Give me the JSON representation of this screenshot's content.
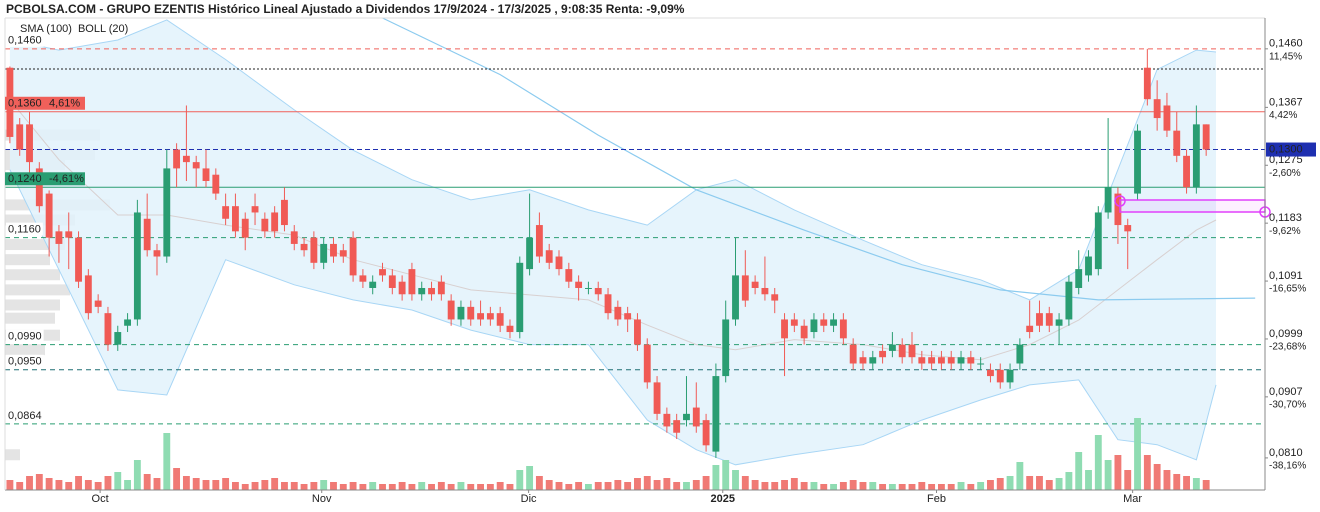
{
  "chart_data": {
    "type": "candlestick",
    "title": "PCBOLSA.COM - GRUPO EZENTIS Histórico Lineal Ajustado a Dividendos 17/9/2024 - 17/3/2025 , 9:08:35 Renta: -9,09%",
    "up_color": "#2a9d72",
    "down_color": "#f05a55",
    "up_volume_color": "#8fdcb2",
    "down_volume_color": "#f07a75",
    "xlim": [
      -0.5,
      128
    ],
    "ylim": [
      0.0759,
      0.1509
    ],
    "vlim": [
      0,
      100
    ],
    "xticks": [
      {
        "value": 9.2,
        "label": "Oct"
      },
      {
        "value": 31.8,
        "label": "Nov"
      },
      {
        "value": 52.9,
        "label": "Dic"
      },
      {
        "value": 72.7,
        "label": "2025"
      },
      {
        "value": 94.5,
        "label": "Feb"
      },
      {
        "value": 114.5,
        "label": "Mar"
      }
    ],
    "yticks": [
      {
        "value": 0.146,
        "label": "0,1460"
      },
      {
        "value": 0.1367,
        "label": "0,1367"
      },
      {
        "value": 0.1275,
        "label": "0,1275"
      },
      {
        "value": 0.1183,
        "label": "0,1183"
      },
      {
        "value": 0.1091,
        "label": "0,1091"
      },
      {
        "value": 0.0999,
        "label": "0,0999"
      },
      {
        "value": 0.0907,
        "label": "0,0907"
      },
      {
        "value": 0.081,
        "label": "0,0810"
      }
    ],
    "ytick_changes": [
      "11,45%",
      "4,42%",
      "-2,60%",
      "-9,62%",
      "-16,65%",
      "-23,68%",
      "-30,70%",
      "-38,16%"
    ],
    "last_price": {
      "value": 0.13,
      "label": "0,1300",
      "color": "#1e2fb0"
    },
    "levels": [
      {
        "value": 0.146,
        "label": "0,1460",
        "color": "#f0605a",
        "style": "dashed"
      },
      {
        "value": 0.1428,
        "color": "#222222",
        "style": "dotted"
      },
      {
        "value": 0.136,
        "label": "0,1360",
        "change": "4,61%",
        "color": "#f0605a",
        "style": "solid"
      },
      {
        "value": 0.124,
        "label": "0,1240",
        "change": "-4,61%",
        "color": "#2a9d72",
        "style": "solid"
      },
      {
        "value": 0.116,
        "label": "0,1160",
        "color": "#2a9d72",
        "style": "dashed"
      },
      {
        "value": 0.099,
        "label": "0,0990",
        "color": "#2a9d72",
        "style": "dashed"
      },
      {
        "value": 0.095,
        "label": "0,0950",
        "color": "#1f6f73",
        "style": "dashed"
      },
      {
        "value": 0.0864,
        "label": "0,0864",
        "color": "#2a9d72",
        "style": "dashed"
      }
    ],
    "legend": [
      {
        "name": "SMA (100)",
        "color": "#5ab4e8"
      },
      {
        "name": "BOLL (20)",
        "color": "#c4c4c4"
      }
    ],
    "sma": {
      "color": "#8ccbef",
      "x": [
        38,
        50,
        60,
        70,
        81,
        91,
        101,
        111,
        127
      ],
      "values": [
        0.1509,
        0.1419,
        0.1323,
        0.1236,
        0.1172,
        0.1117,
        0.1077,
        0.1061,
        0.1064
      ]
    },
    "bollinger": {
      "band_color": "#a8d6f5",
      "fill": "#e2f2fc",
      "mid_color": "#d8d0d0",
      "x": [
        0,
        5,
        11,
        16,
        22,
        29,
        35,
        41,
        47,
        53,
        59,
        65,
        70,
        74,
        80,
        87,
        93,
        99,
        104,
        109,
        113,
        117,
        121,
        123
      ],
      "upper": [
        0.1474,
        0.1458,
        0.1474,
        0.1506,
        0.1443,
        0.1363,
        0.1299,
        0.1252,
        0.122,
        0.1236,
        0.1204,
        0.118,
        0.1236,
        0.1252,
        0.1204,
        0.1156,
        0.1117,
        0.1093,
        0.1061,
        0.1109,
        0.1268,
        0.1427,
        0.1458,
        0.1455
      ],
      "lower": [
        0.1268,
        0.1109,
        0.0918,
        0.091,
        0.1125,
        0.1085,
        0.1061,
        0.1045,
        0.1013,
        0.099,
        0.099,
        0.087,
        0.0823,
        0.0799,
        0.0815,
        0.0831,
        0.087,
        0.0902,
        0.0926,
        0.0934,
        0.0839,
        0.0831,
        0.0807,
        0.0926
      ],
      "middle": [
        0.1379,
        0.1284,
        0.1196,
        0.1196,
        0.118,
        0.1164,
        0.1125,
        0.1101,
        0.1077,
        0.1069,
        0.1061,
        0.1021,
        0.099,
        0.0982,
        0.0998,
        0.099,
        0.0974,
        0.0966,
        0.099,
        0.1029,
        0.1077,
        0.1125,
        0.1172,
        0.1188
      ]
    },
    "volume_profile": {
      "color": "#e4e4e4",
      "prices": [
        0.1323,
        0.1292,
        0.1276,
        0.1212,
        0.1188,
        0.1149,
        0.1125,
        0.1101,
        0.1077,
        0.1053,
        0.1032,
        0.1005,
        0.0982,
        0.0815
      ],
      "values": [
        95,
        90,
        60,
        105,
        70,
        60,
        45,
        55,
        65,
        55,
        50,
        55,
        40,
        15
      ]
    },
    "open": [
      0.143,
      0.134,
      0.134,
      0.127,
      0.123,
      0.117,
      0.117,
      0.116,
      0.11,
      0.106,
      0.104,
      0.099,
      0.102,
      0.103,
      0.119,
      0.114,
      0.113,
      0.13,
      0.129,
      0.128,
      0.127,
      0.126,
      0.121,
      0.121,
      0.119,
      0.121,
      0.119,
      0.12,
      0.122,
      0.117,
      0.115,
      0.116,
      0.112,
      0.115,
      0.114,
      0.116,
      0.11,
      0.108,
      0.111,
      0.11,
      0.109,
      0.111,
      0.107,
      0.108,
      0.109,
      0.106,
      0.103,
      0.105,
      0.104,
      0.104,
      0.104,
      0.102,
      0.101,
      0.111,
      0.118,
      0.114,
      0.113,
      0.111,
      0.109,
      0.108,
      0.108,
      0.107,
      0.105,
      0.104,
      0.103,
      0.099,
      0.093,
      0.088,
      0.087,
      0.087,
      0.089,
      0.087,
      0.082,
      0.094,
      0.103,
      0.11,
      0.109,
      0.108,
      0.107,
      0.103,
      0.103,
      0.102,
      0.101,
      0.103,
      0.102,
      0.103,
      0.099,
      0.097,
      0.096,
      0.098,
      0.098,
      0.099,
      0.099,
      0.097,
      0.097,
      0.097,
      0.097,
      0.096,
      0.097,
      0.096,
      0.095,
      0.095,
      0.093,
      0.096,
      0.102,
      0.104,
      0.104,
      0.102,
      0.103,
      0.108,
      0.11,
      0.111,
      0.12,
      0.123,
      0.118,
      0.123,
      0.143,
      0.138,
      0.137,
      0.133,
      0.129,
      0.124,
      0.134
    ],
    "high": [
      0.1432,
      0.135,
      0.136,
      0.128,
      0.1235,
      0.118,
      0.12,
      0.117,
      0.111,
      0.107,
      0.105,
      0.102,
      0.104,
      0.122,
      0.123,
      0.115,
      0.13,
      0.131,
      0.137,
      0.129,
      0.13,
      0.127,
      0.123,
      0.123,
      0.12,
      0.123,
      0.12,
      0.121,
      0.124,
      0.118,
      0.116,
      0.117,
      0.116,
      0.116,
      0.115,
      0.117,
      0.111,
      0.11,
      0.112,
      0.111,
      0.11,
      0.112,
      0.109,
      0.109,
      0.11,
      0.107,
      0.106,
      0.106,
      0.106,
      0.105,
      0.105,
      0.103,
      0.113,
      0.123,
      0.12,
      0.115,
      0.114,
      0.112,
      0.11,
      0.109,
      0.109,
      0.108,
      0.106,
      0.105,
      0.104,
      0.1,
      0.094,
      0.089,
      0.088,
      0.094,
      0.093,
      0.088,
      0.096,
      0.106,
      0.116,
      0.114,
      0.11,
      0.113,
      0.108,
      0.104,
      0.104,
      0.103,
      0.104,
      0.104,
      0.104,
      0.104,
      0.1,
      0.098,
      0.098,
      0.099,
      0.101,
      0.1,
      0.101,
      0.098,
      0.098,
      0.098,
      0.098,
      0.098,
      0.098,
      0.097,
      0.096,
      0.096,
      0.096,
      0.1,
      0.106,
      0.106,
      0.105,
      0.104,
      0.11,
      0.114,
      0.114,
      0.121,
      0.135,
      0.124,
      0.119,
      0.134,
      0.146,
      0.141,
      0.139,
      0.136,
      0.13,
      0.137,
      0.134
    ],
    "low": [
      0.131,
      0.129,
      0.126,
      0.12,
      0.113,
      0.112,
      0.111,
      0.108,
      0.103,
      0.104,
      0.098,
      0.098,
      0.101,
      0.102,
      0.113,
      0.11,
      0.112,
      0.124,
      0.125,
      0.124,
      0.124,
      0.122,
      0.118,
      0.116,
      0.114,
      0.118,
      0.116,
      0.116,
      0.117,
      0.114,
      0.113,
      0.111,
      0.111,
      0.112,
      0.112,
      0.109,
      0.108,
      0.107,
      0.109,
      0.107,
      0.106,
      0.106,
      0.106,
      0.106,
      0.106,
      0.102,
      0.102,
      0.102,
      0.102,
      0.102,
      0.101,
      0.1,
      0.1,
      0.11,
      0.112,
      0.111,
      0.11,
      0.108,
      0.106,
      0.107,
      0.106,
      0.103,
      0.102,
      0.101,
      0.098,
      0.092,
      0.087,
      0.085,
      0.084,
      0.086,
      0.085,
      0.082,
      0.081,
      0.093,
      0.102,
      0.105,
      0.107,
      0.106,
      0.104,
      0.094,
      0.101,
      0.099,
      0.1,
      0.101,
      0.101,
      0.099,
      0.095,
      0.095,
      0.095,
      0.096,
      0.097,
      0.096,
      0.096,
      0.095,
      0.095,
      0.095,
      0.095,
      0.095,
      0.095,
      0.095,
      0.093,
      0.092,
      0.092,
      0.095,
      0.1,
      0.101,
      0.101,
      0.099,
      0.102,
      0.107,
      0.109,
      0.11,
      0.119,
      0.115,
      0.111,
      0.122,
      0.137,
      0.133,
      0.132,
      0.128,
      0.123,
      0.123,
      0.129
    ],
    "close": [
      0.132,
      0.13,
      0.128,
      0.121,
      0.116,
      0.115,
      0.116,
      0.109,
      0.104,
      0.105,
      0.099,
      0.101,
      0.103,
      0.12,
      0.114,
      0.113,
      0.127,
      0.127,
      0.128,
      0.127,
      0.125,
      0.123,
      0.119,
      0.117,
      0.116,
      0.12,
      0.117,
      0.117,
      0.118,
      0.115,
      0.114,
      0.112,
      0.115,
      0.113,
      0.113,
      0.11,
      0.109,
      0.109,
      0.11,
      0.108,
      0.107,
      0.107,
      0.108,
      0.107,
      0.107,
      0.103,
      0.105,
      0.103,
      0.103,
      0.103,
      0.102,
      0.101,
      0.112,
      0.116,
      0.113,
      0.112,
      0.111,
      0.109,
      0.108,
      0.108,
      0.107,
      0.104,
      0.103,
      0.103,
      0.099,
      0.093,
      0.088,
      0.086,
      0.085,
      0.088,
      0.086,
      0.083,
      0.094,
      0.103,
      0.11,
      0.106,
      0.108,
      0.107,
      0.106,
      0.1,
      0.102,
      0.1,
      0.103,
      0.102,
      0.103,
      0.1,
      0.096,
      0.096,
      0.097,
      0.097,
      0.099,
      0.097,
      0.097,
      0.096,
      0.096,
      0.096,
      0.096,
      0.097,
      0.096,
      0.096,
      0.094,
      0.093,
      0.095,
      0.099,
      0.101,
      0.102,
      0.102,
      0.103,
      0.109,
      0.111,
      0.113,
      0.12,
      0.124,
      0.118,
      0.117,
      0.133,
      0.138,
      0.135,
      0.133,
      0.129,
      0.124,
      0.134,
      0.13
    ],
    "volume": [
      10,
      8,
      14,
      16,
      12,
      10,
      8,
      14,
      10,
      8,
      14,
      18,
      10,
      30,
      16,
      12,
      57,
      22,
      14,
      12,
      10,
      10,
      12,
      8,
      6,
      8,
      10,
      12,
      8,
      8,
      6,
      8,
      10,
      8,
      6,
      8,
      6,
      8,
      6,
      6,
      8,
      6,
      8,
      6,
      8,
      6,
      8,
      6,
      6,
      6,
      8,
      6,
      20,
      24,
      14,
      10,
      8,
      6,
      8,
      6,
      8,
      8,
      10,
      8,
      12,
      14,
      10,
      12,
      8,
      8,
      10,
      14,
      25,
      30,
      20,
      14,
      10,
      8,
      8,
      10,
      12,
      8,
      8,
      6,
      6,
      8,
      10,
      8,
      8,
      6,
      6,
      6,
      6,
      8,
      6,
      6,
      6,
      8,
      6,
      8,
      10,
      12,
      14,
      28,
      14,
      14,
      10,
      12,
      18,
      38,
      20,
      55,
      30,
      35,
      20,
      72,
      35,
      26,
      20,
      16,
      14,
      12,
      10
    ]
  }
}
